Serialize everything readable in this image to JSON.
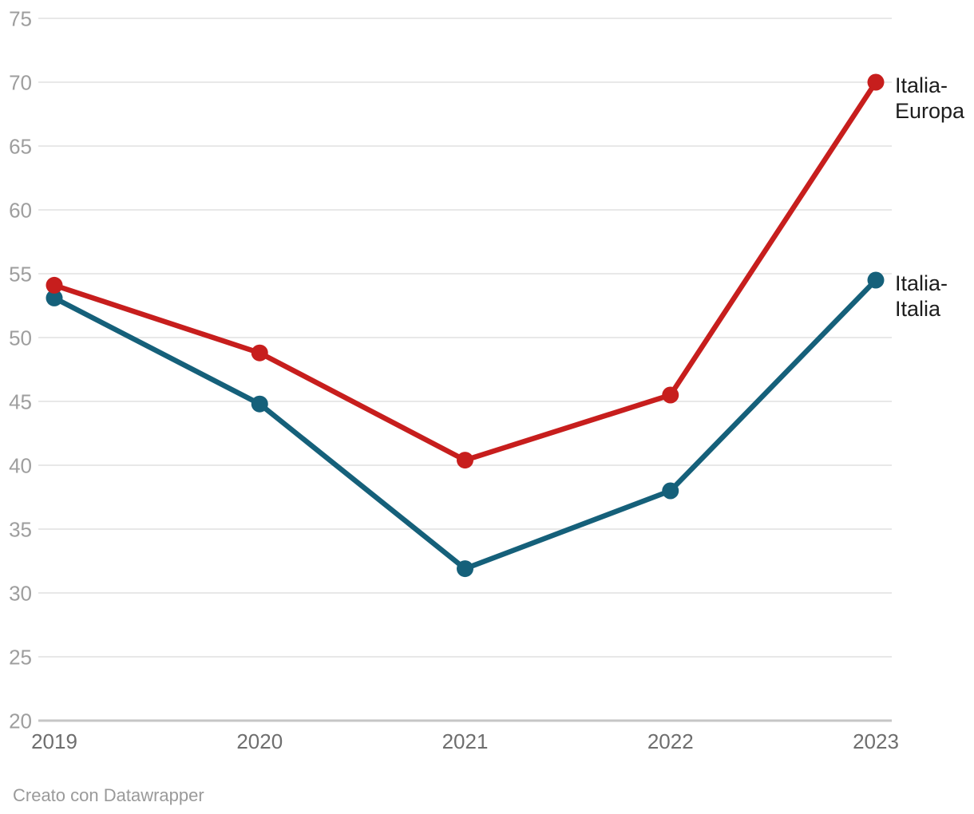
{
  "chart_data": {
    "type": "line",
    "x": [
      "2019",
      "2020",
      "2021",
      "2022",
      "2023"
    ],
    "series": [
      {
        "name": "Italia-Europa",
        "color": "#c71e1d",
        "values": [
          54.1,
          48.8,
          40.4,
          45.5,
          70.0
        ]
      },
      {
        "name": "Italia-Italia",
        "color": "#15607a",
        "values": [
          53.1,
          44.8,
          31.9,
          38.0,
          54.5
        ]
      }
    ],
    "ylim": [
      20,
      75
    ],
    "ytick_step": 5,
    "grid": "horizontal",
    "legend_position": "direct-labels-right"
  },
  "styles": {
    "background": "#ffffff",
    "grid_color": "#e8e8e8",
    "baseline_color": "#c6c6c6",
    "ytick_color": "#9e9e9e",
    "xtick_color": "#6e6e6e",
    "series_label_color": "#1d1d1d",
    "footer_color": "#9a9a9a"
  },
  "footer": {
    "text": "Creato con Datawrapper"
  }
}
